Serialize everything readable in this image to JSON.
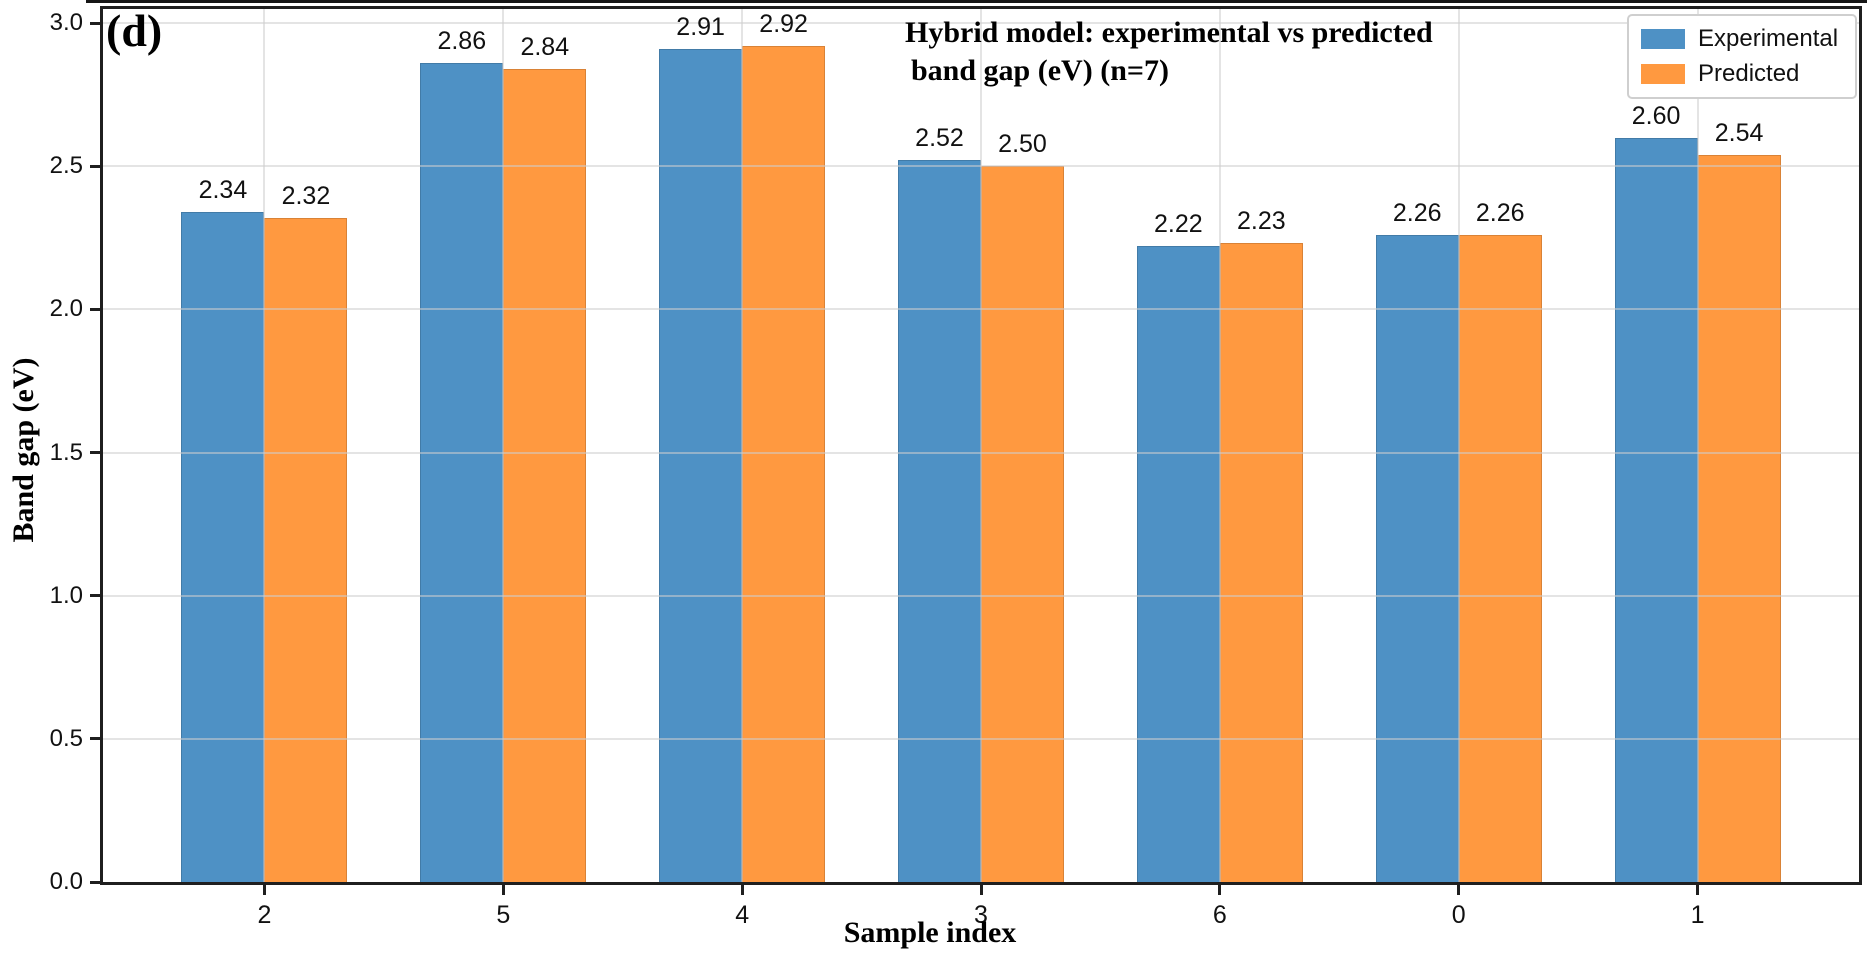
{
  "figure": {
    "panel_label": "(d)",
    "title_line1": "Hybrid model: experimental vs predicted",
    "title_line2": "band gap (eV) (n=7)"
  },
  "axes": {
    "xlabel": "Sample index",
    "ylabel": "Band gap (eV)"
  },
  "legend": {
    "items": [
      {
        "label": "Experimental",
        "color": "#4E91C5"
      },
      {
        "label": "Predicted",
        "color": "#FF9940"
      }
    ]
  },
  "chart_data": {
    "type": "bar",
    "title": "Hybrid model: experimental vs predicted band gap (eV) (n=7)",
    "xlabel": "Sample index",
    "ylabel": "Band gap (eV)",
    "categories": [
      "2",
      "5",
      "4",
      "3",
      "6",
      "0",
      "1"
    ],
    "series": [
      {
        "name": "Experimental",
        "color": "#4E91C5",
        "values": [
          2.34,
          2.86,
          2.91,
          2.52,
          2.22,
          2.26,
          2.6
        ]
      },
      {
        "name": "Predicted",
        "color": "#FF9940",
        "values": [
          2.32,
          2.84,
          2.92,
          2.5,
          2.23,
          2.26,
          2.54
        ]
      }
    ],
    "ylim": [
      0,
      3.0
    ],
    "yticks": [
      0.0,
      0.5,
      1.0,
      1.5,
      2.0,
      2.5,
      3.0
    ],
    "bar_value_labels": true,
    "grid": true,
    "legend_position": "upper right",
    "colors": {
      "grid": "#e8e8e8",
      "spine": "#1f1f1f",
      "text": "#111111"
    }
  }
}
